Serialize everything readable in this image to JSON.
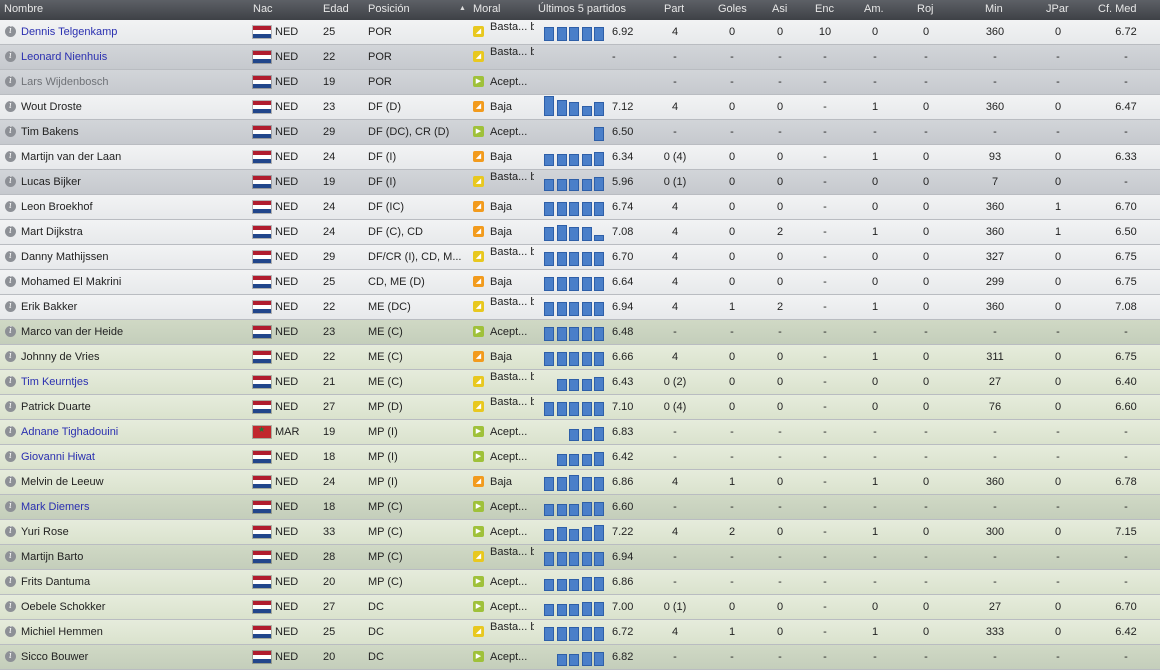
{
  "header": {
    "nombre": "Nombre",
    "nac": "Nac",
    "edad": "Edad",
    "posicion": "Posición",
    "moral": "Moral",
    "ultimos": "Últimos 5 partidos",
    "part": "Part",
    "goles": "Goles",
    "asi": "Asi",
    "enc": "Enc",
    "am": "Am.",
    "roj": "Roj",
    "min": "Min",
    "jpar": "JPar",
    "cfmed": "Cf. Med"
  },
  "colors": {
    "bar": "#4a7fc9",
    "link": "#2a2fb0"
  },
  "players": [
    {
      "name": "Dennis Telgenkamp",
      "style": "link",
      "bg": "light",
      "flag": "ned",
      "nat": "NED",
      "age": "25",
      "pos": "POR",
      "moral_icon": "m-yellow",
      "moral": "Basta... baja",
      "bars": [
        14,
        14,
        14,
        14,
        14
      ],
      "avg": "6.92",
      "part": "4",
      "goles": "0",
      "asi": "0",
      "enc": "10",
      "am": "0",
      "roj": "0",
      "min": "360",
      "jpar": "0",
      "cf": "6.72"
    },
    {
      "name": "Leonard Nienhuis",
      "style": "link",
      "bg": "dark",
      "flag": "ned",
      "nat": "NED",
      "age": "22",
      "pos": "POR",
      "moral_icon": "m-yellow",
      "moral": "Basta... baja",
      "bars": [],
      "avg": "-",
      "part": "-",
      "goles": "-",
      "asi": "-",
      "enc": "-",
      "am": "-",
      "roj": "-",
      "min": "-",
      "jpar": "-",
      "cf": "-"
    },
    {
      "name": "Lars Wijdenbosch",
      "style": "dim",
      "bg": "dark",
      "flag": "ned",
      "nat": "NED",
      "age": "19",
      "pos": "POR",
      "moral_icon": "m-green",
      "moral": "Acept...",
      "bars": [],
      "avg": "",
      "part": "-",
      "goles": "-",
      "asi": "-",
      "enc": "-",
      "am": "-",
      "roj": "-",
      "min": "-",
      "jpar": "-",
      "cf": "-"
    },
    {
      "name": "Wout Droste",
      "style": "",
      "bg": "light",
      "flag": "ned",
      "nat": "NED",
      "age": "23",
      "pos": "DF (D)",
      "moral_icon": "m-orange",
      "moral": "Baja",
      "bars": [
        20,
        16,
        14,
        10,
        14
      ],
      "avg": "7.12",
      "part": "4",
      "goles": "0",
      "asi": "0",
      "enc": "-",
      "am": "1",
      "roj": "0",
      "min": "360",
      "jpar": "0",
      "cf": "6.47"
    },
    {
      "name": "Tim Bakens",
      "style": "",
      "bg": "dark",
      "flag": "ned",
      "nat": "NED",
      "age": "29",
      "pos": "DF (DC), CR (D)",
      "moral_icon": "m-green",
      "moral": "Acept...",
      "bars": [
        0,
        0,
        0,
        0,
        14
      ],
      "avg": "6.50",
      "part": "-",
      "goles": "-",
      "asi": "-",
      "enc": "-",
      "am": "-",
      "roj": "-",
      "min": "-",
      "jpar": "-",
      "cf": "-"
    },
    {
      "name": "Martijn van der Laan",
      "style": "",
      "bg": "light",
      "flag": "ned",
      "nat": "NED",
      "age": "24",
      "pos": "DF (I)",
      "moral_icon": "m-orange",
      "moral": "Baja",
      "bars": [
        12,
        12,
        12,
        12,
        14
      ],
      "avg": "6.34",
      "part": "0 (4)",
      "goles": "0",
      "asi": "0",
      "enc": "-",
      "am": "1",
      "roj": "0",
      "min": "93",
      "jpar": "0",
      "cf": "6.33"
    },
    {
      "name": "Lucas Bijker",
      "style": "",
      "bg": "dark",
      "flag": "ned",
      "nat": "NED",
      "age": "19",
      "pos": "DF (I)",
      "moral_icon": "m-yellow",
      "moral": "Basta... baja",
      "bars": [
        12,
        12,
        12,
        12,
        14
      ],
      "avg": "5.96",
      "part": "0 (1)",
      "goles": "0",
      "asi": "0",
      "enc": "-",
      "am": "0",
      "roj": "0",
      "min": "7",
      "jpar": "0",
      "cf": "-"
    },
    {
      "name": "Leon Broekhof",
      "style": "",
      "bg": "light",
      "flag": "ned",
      "nat": "NED",
      "age": "24",
      "pos": "DF (IC)",
      "moral_icon": "m-orange",
      "moral": "Baja",
      "bars": [
        14,
        14,
        14,
        14,
        14
      ],
      "avg": "6.74",
      "part": "4",
      "goles": "0",
      "asi": "0",
      "enc": "-",
      "am": "0",
      "roj": "0",
      "min": "360",
      "jpar": "1",
      "cf": "6.70"
    },
    {
      "name": "Mart Dijkstra",
      "style": "",
      "bg": "light",
      "flag": "ned",
      "nat": "NED",
      "age": "24",
      "pos": "DF (C), CD",
      "moral_icon": "m-orange",
      "moral": "Baja",
      "bars": [
        14,
        16,
        14,
        14,
        6
      ],
      "avg": "7.08",
      "part": "4",
      "goles": "0",
      "asi": "2",
      "enc": "-",
      "am": "1",
      "roj": "0",
      "min": "360",
      "jpar": "1",
      "cf": "6.50"
    },
    {
      "name": "Danny Mathijssen",
      "style": "",
      "bg": "light",
      "flag": "ned",
      "nat": "NED",
      "age": "29",
      "pos": "DF/CR (I), CD, M...",
      "moral_icon": "m-yellow",
      "moral": "Basta... baja",
      "bars": [
        14,
        14,
        14,
        14,
        14
      ],
      "avg": "6.70",
      "part": "4",
      "goles": "0",
      "asi": "0",
      "enc": "-",
      "am": "0",
      "roj": "0",
      "min": "327",
      "jpar": "0",
      "cf": "6.75"
    },
    {
      "name": "Mohamed El Makrini",
      "style": "",
      "bg": "light",
      "flag": "ned",
      "nat": "NED",
      "age": "25",
      "pos": "CD, ME (D)",
      "moral_icon": "m-orange",
      "moral": "Baja",
      "bars": [
        14,
        14,
        14,
        14,
        14
      ],
      "avg": "6.64",
      "part": "4",
      "goles": "0",
      "asi": "0",
      "enc": "-",
      "am": "0",
      "roj": "0",
      "min": "299",
      "jpar": "0",
      "cf": "6.75"
    },
    {
      "name": "Erik Bakker",
      "style": "",
      "bg": "light",
      "flag": "ned",
      "nat": "NED",
      "age": "22",
      "pos": "ME (DC)",
      "moral_icon": "m-yellow",
      "moral": "Basta... baja",
      "bars": [
        14,
        14,
        14,
        14,
        14
      ],
      "avg": "6.94",
      "part": "4",
      "goles": "1",
      "asi": "2",
      "enc": "-",
      "am": "1",
      "roj": "0",
      "min": "360",
      "jpar": "0",
      "cf": "7.08"
    },
    {
      "name": "Marco van der Heide",
      "style": "",
      "bg": "green2",
      "flag": "ned",
      "nat": "NED",
      "age": "23",
      "pos": "ME (C)",
      "moral_icon": "m-green",
      "moral": "Acept...",
      "bars": [
        14,
        14,
        14,
        14,
        14
      ],
      "avg": "6.48",
      "part": "-",
      "goles": "-",
      "asi": "-",
      "enc": "-",
      "am": "-",
      "roj": "-",
      "min": "-",
      "jpar": "-",
      "cf": "-"
    },
    {
      "name": "Johnny de Vries",
      "style": "",
      "bg": "green",
      "flag": "ned",
      "nat": "NED",
      "age": "22",
      "pos": "ME (C)",
      "moral_icon": "m-orange",
      "moral": "Baja",
      "bars": [
        14,
        14,
        14,
        14,
        14
      ],
      "avg": "6.66",
      "part": "4",
      "goles": "0",
      "asi": "0",
      "enc": "-",
      "am": "1",
      "roj": "0",
      "min": "311",
      "jpar": "0",
      "cf": "6.75"
    },
    {
      "name": "Tim Keurntjes",
      "style": "link",
      "bg": "green",
      "flag": "ned",
      "nat": "NED",
      "age": "21",
      "pos": "ME (C)",
      "moral_icon": "m-yellow",
      "moral": "Basta... baja",
      "bars": [
        0,
        12,
        12,
        12,
        14
      ],
      "avg": "6.43",
      "part": "0 (2)",
      "goles": "0",
      "asi": "0",
      "enc": "-",
      "am": "0",
      "roj": "0",
      "min": "27",
      "jpar": "0",
      "cf": "6.40"
    },
    {
      "name": "Patrick Duarte",
      "style": "",
      "bg": "green",
      "flag": "ned",
      "nat": "NED",
      "age": "27",
      "pos": "MP (D)",
      "moral_icon": "m-yellow",
      "moral": "Basta... baja",
      "bars": [
        14,
        14,
        14,
        14,
        14
      ],
      "avg": "7.10",
      "part": "0 (4)",
      "goles": "0",
      "asi": "0",
      "enc": "-",
      "am": "0",
      "roj": "0",
      "min": "76",
      "jpar": "0",
      "cf": "6.60"
    },
    {
      "name": "Adnane Tighadouini",
      "style": "link",
      "bg": "green",
      "flag": "mar",
      "nat": "MAR",
      "age": "19",
      "pos": "MP (I)",
      "moral_icon": "m-green",
      "moral": "Acept...",
      "bars": [
        0,
        0,
        12,
        12,
        14
      ],
      "avg": "6.83",
      "part": "-",
      "goles": "-",
      "asi": "-",
      "enc": "-",
      "am": "-",
      "roj": "-",
      "min": "-",
      "jpar": "-",
      "cf": "-"
    },
    {
      "name": "Giovanni Hiwat",
      "style": "link",
      "bg": "green",
      "flag": "ned",
      "nat": "NED",
      "age": "18",
      "pos": "MP (I)",
      "moral_icon": "m-green",
      "moral": "Acept...",
      "bars": [
        0,
        12,
        12,
        12,
        14
      ],
      "avg": "6.42",
      "part": "-",
      "goles": "-",
      "asi": "-",
      "enc": "-",
      "am": "-",
      "roj": "-",
      "min": "-",
      "jpar": "-",
      "cf": "-"
    },
    {
      "name": "Melvin de Leeuw",
      "style": "",
      "bg": "green",
      "flag": "ned",
      "nat": "NED",
      "age": "24",
      "pos": "MP (I)",
      "moral_icon": "m-orange",
      "moral": "Baja",
      "bars": [
        14,
        14,
        16,
        14,
        14
      ],
      "avg": "6.86",
      "part": "4",
      "goles": "1",
      "asi": "0",
      "enc": "-",
      "am": "1",
      "roj": "0",
      "min": "360",
      "jpar": "0",
      "cf": "6.78"
    },
    {
      "name": "Mark Diemers",
      "style": "link",
      "bg": "green2",
      "flag": "ned",
      "nat": "NED",
      "age": "18",
      "pos": "MP (C)",
      "moral_icon": "m-green",
      "moral": "Acept...",
      "bars": [
        12,
        12,
        12,
        14,
        14
      ],
      "avg": "6.60",
      "part": "-",
      "goles": "-",
      "asi": "-",
      "enc": "-",
      "am": "-",
      "roj": "-",
      "min": "-",
      "jpar": "-",
      "cf": "-"
    },
    {
      "name": "Yuri Rose",
      "style": "",
      "bg": "green",
      "flag": "ned",
      "nat": "NED",
      "age": "33",
      "pos": "MP (C)",
      "moral_icon": "m-green",
      "moral": "Acept...",
      "bars": [
        12,
        14,
        12,
        14,
        16
      ],
      "avg": "7.22",
      "part": "4",
      "goles": "2",
      "asi": "0",
      "enc": "-",
      "am": "1",
      "roj": "0",
      "min": "300",
      "jpar": "0",
      "cf": "7.15"
    },
    {
      "name": "Martijn Barto",
      "style": "",
      "bg": "green2",
      "flag": "ned",
      "nat": "NED",
      "age": "28",
      "pos": "MP (C)",
      "moral_icon": "m-yellow",
      "moral": "Basta... baja",
      "bars": [
        14,
        14,
        14,
        14,
        14
      ],
      "avg": "6.94",
      "part": "-",
      "goles": "-",
      "asi": "-",
      "enc": "-",
      "am": "-",
      "roj": "-",
      "min": "-",
      "jpar": "-",
      "cf": "-"
    },
    {
      "name": "Frits Dantuma",
      "style": "",
      "bg": "green",
      "flag": "ned",
      "nat": "NED",
      "age": "20",
      "pos": "MP (C)",
      "moral_icon": "m-green",
      "moral": "Acept...",
      "bars": [
        12,
        12,
        12,
        14,
        14
      ],
      "avg": "6.86",
      "part": "-",
      "goles": "-",
      "asi": "-",
      "enc": "-",
      "am": "-",
      "roj": "-",
      "min": "-",
      "jpar": "-",
      "cf": "-"
    },
    {
      "name": "Oebele Schokker",
      "style": "",
      "bg": "green",
      "flag": "ned",
      "nat": "NED",
      "age": "27",
      "pos": "DC",
      "moral_icon": "m-green",
      "moral": "Acept...",
      "bars": [
        12,
        12,
        12,
        14,
        14
      ],
      "avg": "7.00",
      "part": "0 (1)",
      "goles": "0",
      "asi": "0",
      "enc": "-",
      "am": "0",
      "roj": "0",
      "min": "27",
      "jpar": "0",
      "cf": "6.70"
    },
    {
      "name": "Michiel Hemmen",
      "style": "",
      "bg": "green",
      "flag": "ned",
      "nat": "NED",
      "age": "25",
      "pos": "DC",
      "moral_icon": "m-yellow",
      "moral": "Basta... baja",
      "bars": [
        14,
        14,
        14,
        14,
        14
      ],
      "avg": "6.72",
      "part": "4",
      "goles": "1",
      "asi": "0",
      "enc": "-",
      "am": "1",
      "roj": "0",
      "min": "333",
      "jpar": "0",
      "cf": "6.42"
    },
    {
      "name": "Sicco Bouwer",
      "style": "",
      "bg": "green2",
      "flag": "ned",
      "nat": "NED",
      "age": "20",
      "pos": "DC",
      "moral_icon": "m-green",
      "moral": "Acept...",
      "bars": [
        0,
        12,
        12,
        14,
        14
      ],
      "avg": "6.82",
      "part": "-",
      "goles": "-",
      "asi": "-",
      "enc": "-",
      "am": "-",
      "roj": "-",
      "min": "-",
      "jpar": "-",
      "cf": "-"
    }
  ]
}
